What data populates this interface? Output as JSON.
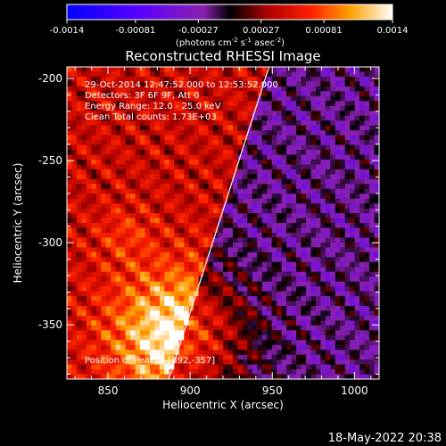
{
  "chart_data": {
    "type": "heatmap",
    "title": "Reconstructed RHESSI Image",
    "xlabel": "Heliocentric X (arcsec)",
    "ylabel": "Heliocentric Y (arcsec)",
    "xlim": [
      825,
      1015
    ],
    "ylim": [
      -383,
      -193
    ],
    "x_ticks": [
      850,
      900,
      950,
      1000
    ],
    "y_ticks": [
      -200,
      -250,
      -300,
      -350
    ],
    "colorbar": {
      "min": -0.0014,
      "max": 0.0014,
      "ticks": [
        "-0.0014",
        "-0.00081",
        "-0.00027",
        "0.00027",
        "0.00081",
        "0.0014"
      ],
      "unit_text": "(photons cm",
      "unit_sup1": "-2",
      "unit_mid1": " s",
      "unit_sup2": "-1",
      "unit_mid2": " asec",
      "unit_sup3": "-2",
      "unit_end": ")"
    },
    "peak": {
      "x": 892,
      "y": -357
    },
    "limb_line": [
      [
        887,
        -383
      ],
      [
        948,
        -193
      ]
    ],
    "grid": false
  },
  "annotations": {
    "line1": "29-Oct-2014 12:47:52.000 to 12:53:52.000",
    "line2": "Detectors: 3F 6F 9F, Att 0",
    "line3": "Energy Range: 12.0 - 25.0 keV",
    "line4": "Clean     Total counts: 1.73E+03",
    "peak_label": "Position of Peak = [892,-357]"
  },
  "footer": {
    "timestamp": "18-May-2022 20:38"
  }
}
